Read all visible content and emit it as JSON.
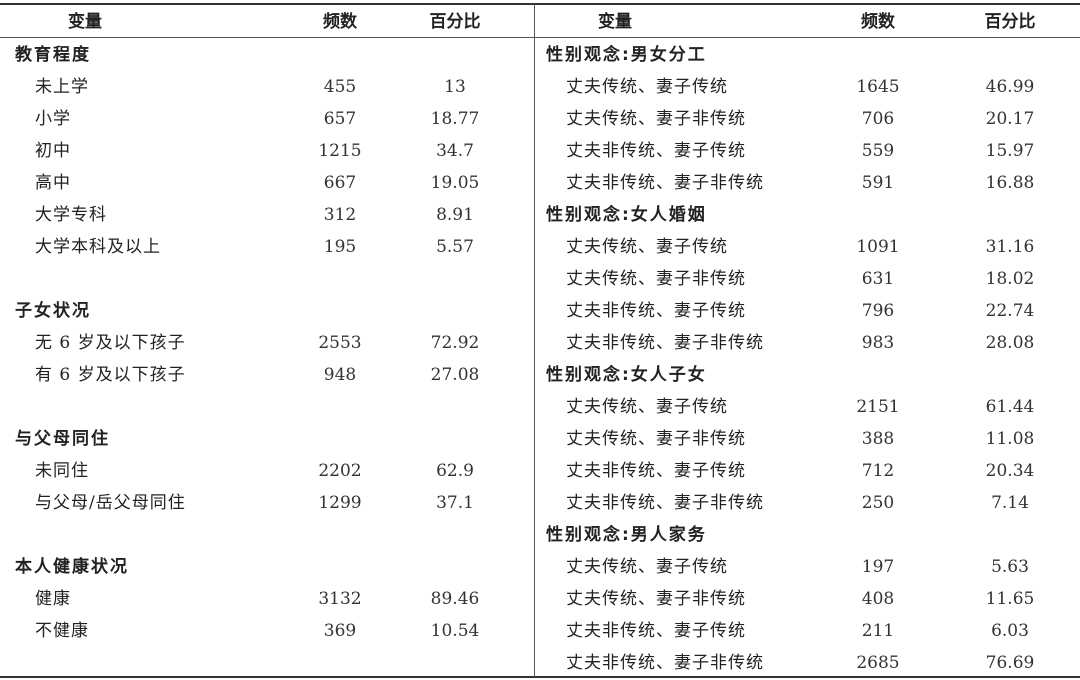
{
  "headers": {
    "variable": "变量",
    "frequency": "频数",
    "percent": "百分比"
  },
  "left": [
    {
      "type": "category",
      "label": "教育程度"
    },
    {
      "type": "item",
      "label": "未上学",
      "freq": "455",
      "pct": "13"
    },
    {
      "type": "item",
      "label": "小学",
      "freq": "657",
      "pct": "18.77"
    },
    {
      "type": "item",
      "label": "初中",
      "freq": "1215",
      "pct": "34.7"
    },
    {
      "type": "item",
      "label": "高中",
      "freq": "667",
      "pct": "19.05"
    },
    {
      "type": "item",
      "label": "大学专科",
      "freq": "312",
      "pct": "8.91"
    },
    {
      "type": "item",
      "label": "大学本科及以上",
      "freq": "195",
      "pct": "5.57"
    },
    {
      "type": "blank"
    },
    {
      "type": "category",
      "label": "子女状况"
    },
    {
      "type": "item",
      "label": "无 6 岁及以下孩子",
      "freq": "2553",
      "pct": "72.92"
    },
    {
      "type": "item",
      "label": "有 6 岁及以下孩子",
      "freq": "948",
      "pct": "27.08"
    },
    {
      "type": "blank"
    },
    {
      "type": "category",
      "label": "与父母同住"
    },
    {
      "type": "item",
      "label": "未同住",
      "freq": "2202",
      "pct": "62.9"
    },
    {
      "type": "item",
      "label": "与父母/岳父母同住",
      "freq": "1299",
      "pct": "37.1"
    },
    {
      "type": "blank"
    },
    {
      "type": "category",
      "label": "本人健康状况"
    },
    {
      "type": "item",
      "label": "健康",
      "freq": "3132",
      "pct": "89.46"
    },
    {
      "type": "item",
      "label": "不健康",
      "freq": "369",
      "pct": "10.54"
    }
  ],
  "right": [
    {
      "type": "category",
      "label": "性别观念:男女分工"
    },
    {
      "type": "item",
      "label": "丈夫传统、妻子传统",
      "freq": "1645",
      "pct": "46.99"
    },
    {
      "type": "item",
      "label": "丈夫传统、妻子非传统",
      "freq": "706",
      "pct": "20.17"
    },
    {
      "type": "item",
      "label": "丈夫非传统、妻子传统",
      "freq": "559",
      "pct": "15.97"
    },
    {
      "type": "item",
      "label": "丈夫非传统、妻子非传统",
      "freq": "591",
      "pct": "16.88"
    },
    {
      "type": "category",
      "label": "性别观念:女人婚姻"
    },
    {
      "type": "item",
      "label": "丈夫传统、妻子传统",
      "freq": "1091",
      "pct": "31.16"
    },
    {
      "type": "item",
      "label": "丈夫传统、妻子非传统",
      "freq": "631",
      "pct": "18.02"
    },
    {
      "type": "item",
      "label": "丈夫非传统、妻子传统",
      "freq": "796",
      "pct": "22.74"
    },
    {
      "type": "item",
      "label": "丈夫非传统、妻子非传统",
      "freq": "983",
      "pct": "28.08"
    },
    {
      "type": "category",
      "label": "性别观念:女人子女"
    },
    {
      "type": "item",
      "label": "丈夫传统、妻子传统",
      "freq": "2151",
      "pct": "61.44"
    },
    {
      "type": "item",
      "label": "丈夫传统、妻子非传统",
      "freq": "388",
      "pct": "11.08"
    },
    {
      "type": "item",
      "label": "丈夫非传统、妻子传统",
      "freq": "712",
      "pct": "20.34"
    },
    {
      "type": "item",
      "label": "丈夫非传统、妻子非传统",
      "freq": "250",
      "pct": "7.14"
    },
    {
      "type": "category",
      "label": "性别观念:男人家务"
    },
    {
      "type": "item",
      "label": "丈夫传统、妻子传统",
      "freq": "197",
      "pct": "5.63"
    },
    {
      "type": "item",
      "label": "丈夫传统、妻子非传统",
      "freq": "408",
      "pct": "11.65"
    },
    {
      "type": "item",
      "label": "丈夫非传统、妻子传统",
      "freq": "211",
      "pct": "6.03"
    },
    {
      "type": "item",
      "label": "丈夫非传统、妻子非传统",
      "freq": "2685",
      "pct": "76.69"
    }
  ]
}
